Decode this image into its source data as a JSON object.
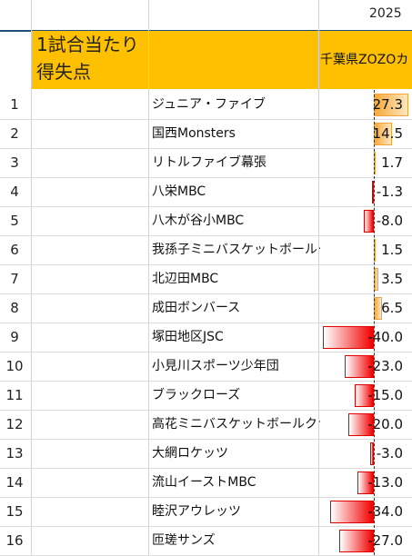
{
  "year": "2025",
  "header": {
    "title": "1試合当たり\n得失点",
    "team": "千葉県ZOZOカ"
  },
  "rows": [
    {
      "n": "1",
      "name": "ジュニア・ファイブ",
      "value": "27.3"
    },
    {
      "n": "2",
      "name": "国西Monsters",
      "value": "14.5"
    },
    {
      "n": "3",
      "name": "リトルファイブ幕張",
      "value": "1.7"
    },
    {
      "n": "4",
      "name": "八栄MBC",
      "value": "-1.3"
    },
    {
      "n": "5",
      "name": "八木が谷小MBC",
      "value": "-8.0"
    },
    {
      "n": "6",
      "name": "我孫子ミニバスケットボールクラブ",
      "value": "1.5"
    },
    {
      "n": "7",
      "name": "北辺田MBC",
      "value": "3.5"
    },
    {
      "n": "8",
      "name": "成田ボンバース",
      "value": "6.5"
    },
    {
      "n": "9",
      "name": "塚田地区JSC",
      "value": "-40.0"
    },
    {
      "n": "10",
      "name": "小見川スポーツ少年団",
      "value": "-23.0"
    },
    {
      "n": "11",
      "name": "ブラックローズ",
      "value": "-15.0"
    },
    {
      "n": "12",
      "name": "高花ミニバスケットボールクラブ",
      "value": "-20.0"
    },
    {
      "n": "13",
      "name": "大網ロケッツ",
      "value": "-3.0"
    },
    {
      "n": "14",
      "name": "流山イーストMBC",
      "value": "-13.0"
    },
    {
      "n": "15",
      "name": "睦沢アウレッツ",
      "value": "-34.0"
    },
    {
      "n": "16",
      "name": "匝瑳サンズ",
      "value": "-27.0"
    }
  ]
}
